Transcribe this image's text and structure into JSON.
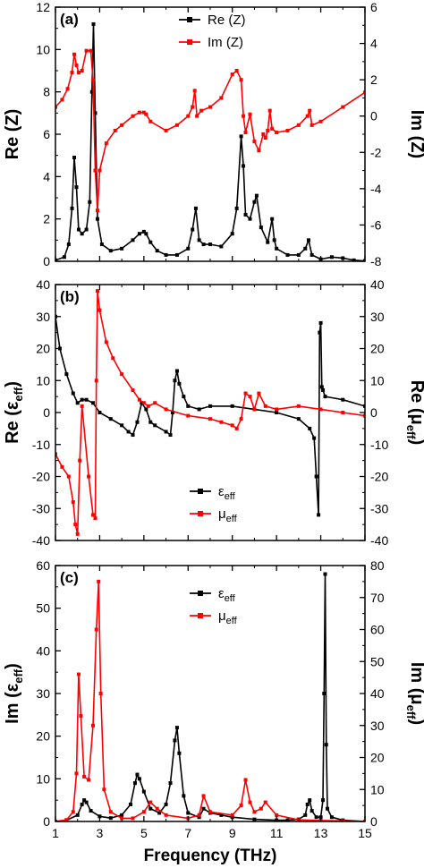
{
  "colors": {
    "re": "#000000",
    "im": "#ff0000",
    "axis": "#000000"
  },
  "xaxis": {
    "label": "Frequency (THz)",
    "ticks": [
      "1",
      "3",
      "5",
      "7",
      "9",
      "11",
      "13",
      "15"
    ],
    "range": [
      1,
      15
    ]
  },
  "chart_data": [
    {
      "type": "line",
      "panel_label": "(a)",
      "x_range": [
        1,
        15
      ],
      "left_axis": {
        "label_main": "Re (Z)",
        "label_sub": "",
        "range": [
          0,
          12
        ],
        "ticks": [
          "0",
          "2",
          "4",
          "6",
          "8",
          "10",
          "12"
        ]
      },
      "right_axis": {
        "label_main": "Im (Z)",
        "label_sub": "",
        "range": [
          -8,
          6
        ],
        "ticks": [
          "-8",
          "-6",
          "-4",
          "-2",
          "0",
          "2",
          "4",
          "6"
        ]
      },
      "legend_position": "top-center",
      "series": [
        {
          "name": "Re (Z)",
          "axis": "left",
          "color": "#000000",
          "x": [
            1,
            1.4,
            1.6,
            1.75,
            1.85,
            1.95,
            2.05,
            2.2,
            2.4,
            2.55,
            2.65,
            2.72,
            2.8,
            2.9,
            3.1,
            3.5,
            4.0,
            4.5,
            4.8,
            5.0,
            5.1,
            5.3,
            5.6,
            6.0,
            6.5,
            7.0,
            7.2,
            7.35,
            7.5,
            7.7,
            8.0,
            8.5,
            9.0,
            9.2,
            9.4,
            9.5,
            9.6,
            9.8,
            10.0,
            10.1,
            10.3,
            10.6,
            10.8,
            10.9,
            11.0,
            11.5,
            12.0,
            12.3,
            12.45,
            12.6,
            13.0,
            13.5,
            14.0,
            14.5,
            15.0
          ],
          "y": [
            0.05,
            0.2,
            0.8,
            2.5,
            4.9,
            3.5,
            1.5,
            1.3,
            1.5,
            2.8,
            8.0,
            11.2,
            7.0,
            2.0,
            0.8,
            0.5,
            0.6,
            1.0,
            1.3,
            1.4,
            1.3,
            0.9,
            0.5,
            0.3,
            0.3,
            0.6,
            1.5,
            2.5,
            1.0,
            0.8,
            0.8,
            0.7,
            1.3,
            2.5,
            5.9,
            4.5,
            2.2,
            2.0,
            2.8,
            3.1,
            1.6,
            0.9,
            2.0,
            1.0,
            0.6,
            0.3,
            0.3,
            0.6,
            1.0,
            0.3,
            0.1,
            0.2,
            0.15,
            0.05,
            0.02
          ]
        },
        {
          "name": "Im (Z)",
          "axis": "right",
          "color": "#ff0000",
          "x": [
            1,
            1.3,
            1.55,
            1.75,
            1.85,
            1.95,
            2.05,
            2.2,
            2.4,
            2.6,
            2.7,
            2.8,
            2.9,
            3.0,
            3.3,
            3.7,
            4.0,
            4.5,
            4.8,
            5.0,
            5.1,
            5.3,
            6.0,
            6.5,
            7.0,
            7.2,
            7.3,
            7.4,
            7.6,
            8.0,
            8.5,
            9.0,
            9.2,
            9.4,
            9.5,
            9.6,
            9.8,
            10.0,
            10.2,
            10.4,
            10.5,
            10.6,
            10.7,
            10.8,
            11.0,
            11.5,
            12.0,
            12.4,
            12.5,
            12.6,
            13.0,
            14.0,
            15.0
          ],
          "y": [
            0.5,
            0.9,
            1.5,
            2.4,
            3.4,
            2.8,
            2.4,
            2.5,
            3.6,
            3.6,
            2.0,
            -3.0,
            -5.2,
            -3.0,
            -1.5,
            -0.8,
            -0.5,
            0,
            0.2,
            0.2,
            0.1,
            -0.3,
            -0.8,
            -0.5,
            0,
            0.5,
            1.4,
            0.0,
            0.3,
            0.5,
            1.0,
            2.3,
            2.5,
            2.0,
            0,
            -0.9,
            0.1,
            -1.4,
            -1.9,
            -1.0,
            -1.2,
            -0.8,
            0.3,
            -0.7,
            -0.9,
            -0.8,
            -0.5,
            0,
            0.3,
            -0.5,
            -0.3,
            0.5,
            1.3
          ]
        }
      ]
    },
    {
      "type": "line",
      "panel_label": "(b)",
      "x_range": [
        1,
        15
      ],
      "left_axis": {
        "label_main": "Re (ε",
        "label_sub": "eff",
        "range": [
          -40,
          40
        ],
        "ticks": [
          "-40",
          "-30",
          "-20",
          "-10",
          "0",
          "10",
          "20",
          "30",
          "40"
        ]
      },
      "right_axis": {
        "label_main": "Re (μ",
        "label_sub": "eff",
        "range": [
          -40,
          40
        ],
        "ticks": [
          "-40",
          "-30",
          "-20",
          "-10",
          "0",
          "10",
          "20",
          "30",
          "40"
        ]
      },
      "legend_position": "bottom-center",
      "series": [
        {
          "name": "ε",
          "name_sub": "eff",
          "axis": "left",
          "color": "#000000",
          "x": [
            1,
            1.2,
            1.5,
            1.8,
            2.0,
            2.2,
            2.4,
            2.7,
            3.0,
            3.5,
            4.0,
            4.3,
            4.5,
            4.7,
            4.9,
            5.1,
            5.3,
            5.5,
            6.0,
            6.2,
            6.3,
            6.4,
            6.5,
            6.6,
            6.8,
            7.0,
            7.5,
            8.0,
            9.0,
            10.0,
            11.0,
            12.0,
            12.5,
            12.7,
            12.8,
            12.9,
            12.95,
            13.0,
            13.05,
            13.1,
            13.2,
            14.0,
            15.0
          ],
          "y": [
            30,
            20,
            12,
            6,
            3,
            4,
            4,
            3,
            0,
            -2,
            -4,
            -6,
            -7,
            -3,
            3,
            1,
            -3,
            -4,
            -6,
            -7,
            0,
            10,
            13,
            9,
            5,
            2,
            1,
            2,
            2,
            1,
            0,
            -2,
            -5,
            -8,
            -20,
            -32,
            25,
            28,
            8,
            7,
            5,
            4,
            2
          ]
        },
        {
          "name": "μ",
          "name_sub": "eff",
          "axis": "right",
          "color": "#ff0000",
          "x": [
            1,
            1.3,
            1.6,
            1.8,
            1.9,
            2.0,
            2.1,
            2.2,
            2.5,
            2.7,
            2.8,
            2.85,
            2.9,
            3.0,
            3.3,
            3.6,
            4.0,
            4.5,
            4.8,
            5.0,
            5.2,
            5.5,
            6.0,
            7.0,
            8.0,
            8.5,
            9.0,
            9.2,
            9.4,
            9.6,
            9.8,
            10.0,
            10.2,
            10.5,
            11.0,
            12.0,
            13.0,
            14.0,
            15.0
          ],
          "y": [
            -13,
            -17,
            -20,
            -28,
            -35,
            -38,
            -15,
            2,
            -20,
            -32,
            -33,
            10,
            38,
            32,
            22,
            17,
            12,
            7,
            4,
            3,
            2,
            3,
            1,
            -1,
            -2,
            -3,
            -4,
            -5,
            -2,
            6,
            5,
            1,
            6,
            2,
            1,
            2,
            1,
            0,
            -1
          ]
        }
      ]
    },
    {
      "type": "line",
      "panel_label": "(c)",
      "x_range": [
        1,
        15
      ],
      "left_axis": {
        "label_main": "Im (ε",
        "label_sub": "eff",
        "range": [
          0,
          60
        ],
        "ticks": [
          "0",
          "10",
          "20",
          "30",
          "40",
          "50",
          "60"
        ]
      },
      "right_axis": {
        "label_main": "Im (μ",
        "label_sub": "eff",
        "range": [
          0,
          80
        ],
        "ticks": [
          "0",
          "10",
          "20",
          "30",
          "40",
          "50",
          "60",
          "70",
          "80"
        ]
      },
      "legend_position": "top-center",
      "series": [
        {
          "name": "ε",
          "name_sub": "eff",
          "axis": "left",
          "color": "#000000",
          "x": [
            1,
            1.5,
            2.0,
            2.2,
            2.3,
            2.4,
            2.6,
            3.0,
            3.5,
            4.0,
            4.4,
            4.6,
            4.7,
            4.8,
            5.0,
            5.3,
            5.7,
            6.0,
            6.2,
            6.4,
            6.5,
            6.6,
            6.8,
            7.0,
            7.5,
            7.7,
            8.0,
            8.5,
            9.0,
            10.0,
            11.0,
            11.5,
            12.0,
            12.3,
            12.4,
            12.5,
            12.6,
            12.8,
            13.0,
            13.1,
            13.15,
            13.2,
            13.25,
            13.3,
            13.5,
            14.0,
            15.0
          ],
          "y": [
            0,
            0.3,
            1.5,
            4,
            5,
            4.5,
            2.5,
            1.2,
            0.8,
            1.5,
            4,
            9,
            11,
            10,
            7,
            3,
            2,
            4,
            9,
            19,
            22,
            16,
            6,
            2,
            1,
            3,
            2,
            1.5,
            1,
            0.5,
            0.3,
            0.3,
            0.5,
            1.5,
            4,
            5,
            2.5,
            1,
            1,
            5,
            30,
            58,
            18,
            3,
            1,
            0.3,
            0
          ]
        },
        {
          "name": "μ",
          "name_sub": "eff",
          "axis": "right",
          "color": "#ff0000",
          "x": [
            1,
            1.5,
            1.8,
            1.95,
            2.05,
            2.15,
            2.3,
            2.5,
            2.7,
            2.85,
            2.95,
            3.05,
            3.2,
            3.5,
            4.0,
            4.5,
            5.0,
            5.3,
            5.6,
            6.0,
            7.0,
            7.5,
            7.7,
            8.0,
            9.0,
            9.4,
            9.6,
            9.8,
            10.0,
            10.3,
            10.5,
            11.0,
            12.0,
            13.0,
            14.0,
            15.0
          ],
          "y": [
            0,
            0.5,
            3,
            15,
            46,
            33,
            14,
            13,
            30,
            60,
            75,
            40,
            10,
            3,
            1,
            1,
            3,
            6,
            4,
            2,
            1,
            2,
            8,
            3,
            2,
            5,
            13,
            6,
            3,
            4,
            6,
            2,
            0.5,
            0.3,
            0.2,
            0
          ]
        }
      ]
    }
  ]
}
